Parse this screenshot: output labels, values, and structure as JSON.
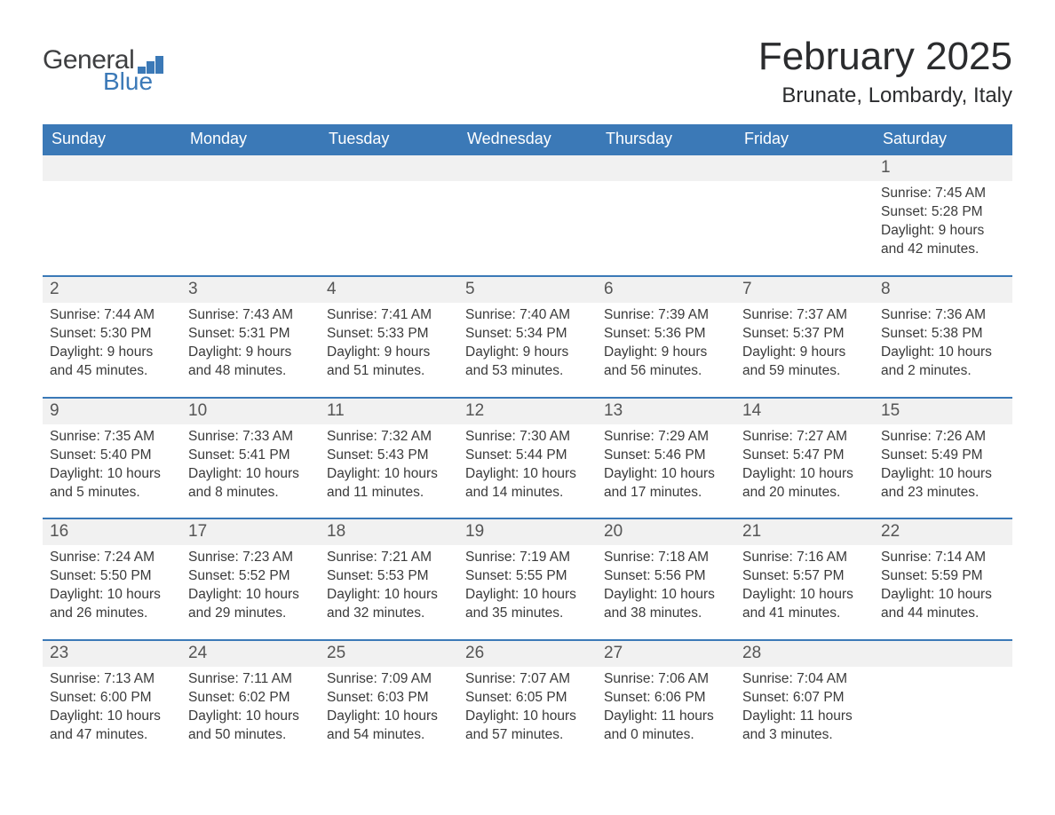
{
  "logo": {
    "word1": "General",
    "word2": "Blue",
    "bar_color": "#3b79b7",
    "text_color_gray": "#3e3f41",
    "text_color_blue": "#3b79b7"
  },
  "header": {
    "title": "February 2025",
    "location": "Brunate, Lombardy, Italy"
  },
  "colors": {
    "header_row_bg": "#3b79b7",
    "header_row_text": "#ffffff",
    "daynum_bg": "#f1f1f1",
    "week_border": "#3b79b7",
    "body_text": "#3a3a3a"
  },
  "day_labels": [
    "Sunday",
    "Monday",
    "Tuesday",
    "Wednesday",
    "Thursday",
    "Friday",
    "Saturday"
  ],
  "weeks": [
    {
      "days": [
        null,
        null,
        null,
        null,
        null,
        null,
        {
          "n": "1",
          "sunrise": "7:45 AM",
          "sunset": "5:28 PM",
          "daylight": "9 hours and 42 minutes."
        }
      ]
    },
    {
      "days": [
        {
          "n": "2",
          "sunrise": "7:44 AM",
          "sunset": "5:30 PM",
          "daylight": "9 hours and 45 minutes."
        },
        {
          "n": "3",
          "sunrise": "7:43 AM",
          "sunset": "5:31 PM",
          "daylight": "9 hours and 48 minutes."
        },
        {
          "n": "4",
          "sunrise": "7:41 AM",
          "sunset": "5:33 PM",
          "daylight": "9 hours and 51 minutes."
        },
        {
          "n": "5",
          "sunrise": "7:40 AM",
          "sunset": "5:34 PM",
          "daylight": "9 hours and 53 minutes."
        },
        {
          "n": "6",
          "sunrise": "7:39 AM",
          "sunset": "5:36 PM",
          "daylight": "9 hours and 56 minutes."
        },
        {
          "n": "7",
          "sunrise": "7:37 AM",
          "sunset": "5:37 PM",
          "daylight": "9 hours and 59 minutes."
        },
        {
          "n": "8",
          "sunrise": "7:36 AM",
          "sunset": "5:38 PM",
          "daylight": "10 hours and 2 minutes."
        }
      ]
    },
    {
      "days": [
        {
          "n": "9",
          "sunrise": "7:35 AM",
          "sunset": "5:40 PM",
          "daylight": "10 hours and 5 minutes."
        },
        {
          "n": "10",
          "sunrise": "7:33 AM",
          "sunset": "5:41 PM",
          "daylight": "10 hours and 8 minutes."
        },
        {
          "n": "11",
          "sunrise": "7:32 AM",
          "sunset": "5:43 PM",
          "daylight": "10 hours and 11 minutes."
        },
        {
          "n": "12",
          "sunrise": "7:30 AM",
          "sunset": "5:44 PM",
          "daylight": "10 hours and 14 minutes."
        },
        {
          "n": "13",
          "sunrise": "7:29 AM",
          "sunset": "5:46 PM",
          "daylight": "10 hours and 17 minutes."
        },
        {
          "n": "14",
          "sunrise": "7:27 AM",
          "sunset": "5:47 PM",
          "daylight": "10 hours and 20 minutes."
        },
        {
          "n": "15",
          "sunrise": "7:26 AM",
          "sunset": "5:49 PM",
          "daylight": "10 hours and 23 minutes."
        }
      ]
    },
    {
      "days": [
        {
          "n": "16",
          "sunrise": "7:24 AM",
          "sunset": "5:50 PM",
          "daylight": "10 hours and 26 minutes."
        },
        {
          "n": "17",
          "sunrise": "7:23 AM",
          "sunset": "5:52 PM",
          "daylight": "10 hours and 29 minutes."
        },
        {
          "n": "18",
          "sunrise": "7:21 AM",
          "sunset": "5:53 PM",
          "daylight": "10 hours and 32 minutes."
        },
        {
          "n": "19",
          "sunrise": "7:19 AM",
          "sunset": "5:55 PM",
          "daylight": "10 hours and 35 minutes."
        },
        {
          "n": "20",
          "sunrise": "7:18 AM",
          "sunset": "5:56 PM",
          "daylight": "10 hours and 38 minutes."
        },
        {
          "n": "21",
          "sunrise": "7:16 AM",
          "sunset": "5:57 PM",
          "daylight": "10 hours and 41 minutes."
        },
        {
          "n": "22",
          "sunrise": "7:14 AM",
          "sunset": "5:59 PM",
          "daylight": "10 hours and 44 minutes."
        }
      ]
    },
    {
      "days": [
        {
          "n": "23",
          "sunrise": "7:13 AM",
          "sunset": "6:00 PM",
          "daylight": "10 hours and 47 minutes."
        },
        {
          "n": "24",
          "sunrise": "7:11 AM",
          "sunset": "6:02 PM",
          "daylight": "10 hours and 50 minutes."
        },
        {
          "n": "25",
          "sunrise": "7:09 AM",
          "sunset": "6:03 PM",
          "daylight": "10 hours and 54 minutes."
        },
        {
          "n": "26",
          "sunrise": "7:07 AM",
          "sunset": "6:05 PM",
          "daylight": "10 hours and 57 minutes."
        },
        {
          "n": "27",
          "sunrise": "7:06 AM",
          "sunset": "6:06 PM",
          "daylight": "11 hours and 0 minutes."
        },
        {
          "n": "28",
          "sunrise": "7:04 AM",
          "sunset": "6:07 PM",
          "daylight": "11 hours and 3 minutes."
        },
        null
      ]
    }
  ],
  "labels": {
    "sunrise": "Sunrise: ",
    "sunset": "Sunset: ",
    "daylight": "Daylight: "
  }
}
